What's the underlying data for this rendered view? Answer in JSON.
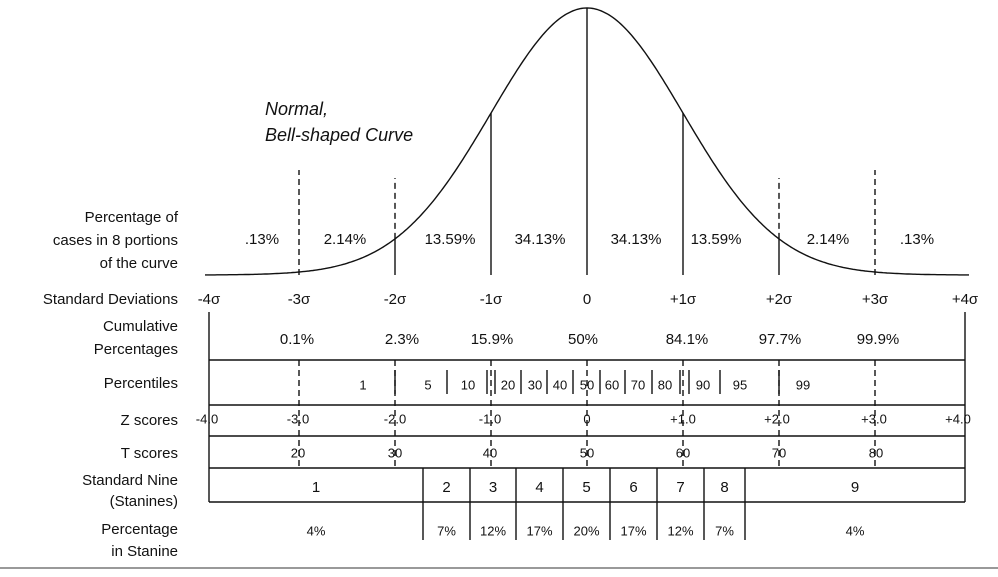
{
  "curve_label": {
    "line1": "Normal,",
    "line2": "Bell-shaped Curve"
  },
  "portions": {
    "label": [
      "Percentage of",
      "cases in 8 portions",
      "of the curve"
    ],
    "values": [
      ".13%",
      "2.14%",
      "13.59%",
      "34.13%",
      "34.13%",
      "13.59%",
      "2.14%",
      ".13%"
    ]
  },
  "standard_deviations": {
    "label": "Standard Deviations",
    "ticks": [
      "-4σ",
      "-3σ",
      "-2σ",
      "-1σ",
      "0",
      "+1σ",
      "+2σ",
      "+3σ",
      "+4σ"
    ]
  },
  "cumulative": {
    "label": [
      "Cumulative",
      "Percentages"
    ],
    "values": [
      "0.1%",
      "2.3%",
      "15.9%",
      "50%",
      "84.1%",
      "97.7%",
      "99.9%"
    ]
  },
  "percentiles": {
    "label": "Percentiles",
    "values": [
      "1",
      "5",
      "10",
      "20",
      "30",
      "40",
      "50",
      "60",
      "70",
      "80",
      "90",
      "95",
      "99"
    ]
  },
  "z_scores": {
    "label": "Z scores",
    "values": [
      "-4.0",
      "-3.0",
      "-2.0",
      "-1.0",
      "0",
      "+1.0",
      "+2.0",
      "+3.0",
      "+4.0"
    ]
  },
  "t_scores": {
    "label": "T scores",
    "values": [
      "20",
      "30",
      "40",
      "50",
      "60",
      "70",
      "80"
    ]
  },
  "stanines": {
    "label": [
      "Standard Nine",
      "(Stanines)"
    ],
    "values": [
      "1",
      "2",
      "3",
      "4",
      "5",
      "6",
      "7",
      "8",
      "9"
    ]
  },
  "stanine_percentages": {
    "label": [
      "Percentage",
      "in Stanine"
    ],
    "values": [
      "4%",
      "7%",
      "12%",
      "17%",
      "20%",
      "17%",
      "12%",
      "7%",
      "4%"
    ]
  }
}
